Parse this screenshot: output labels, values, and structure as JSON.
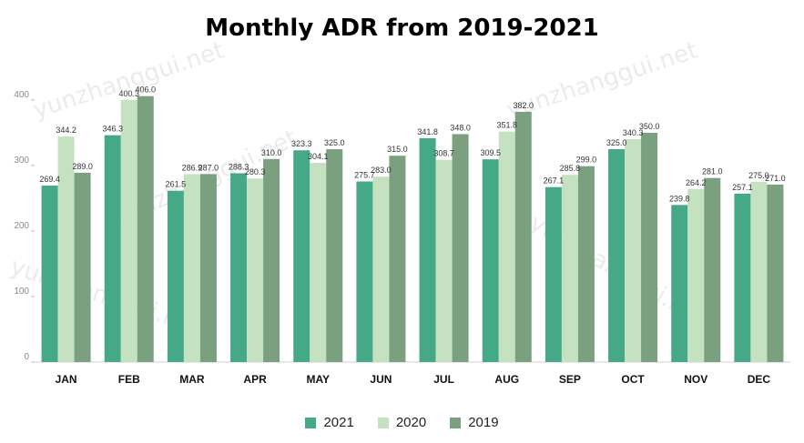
{
  "chart_data": {
    "type": "bar",
    "title": "Monthly ADR from 2019-2021",
    "categories": [
      "JAN",
      "FEB",
      "MAR",
      "APR",
      "MAY",
      "JUN",
      "JUL",
      "AUG",
      "SEP",
      "OCT",
      "NOV",
      "DEC"
    ],
    "series": [
      {
        "name": "2021",
        "color": "#45a886",
        "values": [
          269.4,
          346.3,
          261.5,
          288.3,
          323.3,
          275.7,
          341.8,
          309.5,
          267.1,
          325.0,
          239.8,
          257.1
        ]
      },
      {
        "name": "2020",
        "color": "#c4e2c0",
        "values": [
          344.2,
          400.3,
          286.9,
          280.3,
          304.1,
          283.0,
          308.7,
          351.8,
          285.8,
          340.3,
          264.2,
          275.0
        ]
      },
      {
        "name": "2019",
        "color": "#7aa07f",
        "values": [
          289.0,
          406.0,
          287.0,
          310.0,
          325.0,
          315.0,
          348.0,
          382.0,
          299.0,
          350.0,
          281.0,
          271.0
        ]
      }
    ],
    "y_ticks": [
      "0",
      "100",
      "200",
      "300",
      "400"
    ],
    "ylim": [
      0,
      420
    ],
    "xlabel": "",
    "ylabel": "",
    "legend_position": "bottom-center",
    "grid": false,
    "watermark": "yunzhanggui.net"
  }
}
